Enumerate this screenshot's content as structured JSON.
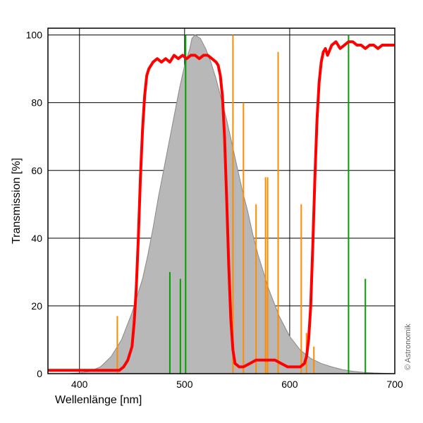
{
  "chart": {
    "type": "line",
    "xlabel": "Wellenlänge [nm]",
    "ylabel": "Transmission [%]",
    "label_fontsize": 16,
    "tick_fontsize": 14,
    "xlim": [
      370,
      700
    ],
    "ylim": [
      0,
      102
    ],
    "xtick_start": 400,
    "xtick_step": 100,
    "ytick_start": 0,
    "ytick_step": 20,
    "ytick_end": 100,
    "background_color": "#ffffff",
    "grid_color": "#000000",
    "grid_width": 1,
    "plot_area_fill": "#ffffff",
    "watermark_text": "Astronomik",
    "watermark_color": "#000000",
    "watermark_opacity": 0.05,
    "copyright": "© Astronomik",
    "eye_curve": {
      "fill": "#b8b8b8",
      "stroke": "#888888",
      "stroke_width": 1,
      "points": [
        [
          380,
          0
        ],
        [
          390,
          0
        ],
        [
          400,
          0.2
        ],
        [
          410,
          0.7
        ],
        [
          420,
          2
        ],
        [
          430,
          5
        ],
        [
          440,
          10
        ],
        [
          450,
          18
        ],
        [
          460,
          28
        ],
        [
          465,
          35
        ],
        [
          470,
          43
        ],
        [
          475,
          52
        ],
        [
          480,
          60
        ],
        [
          485,
          68
        ],
        [
          490,
          76
        ],
        [
          495,
          84
        ],
        [
          500,
          91
        ],
        [
          505,
          96
        ],
        [
          507,
          99
        ],
        [
          510,
          100
        ],
        [
          515,
          99
        ],
        [
          520,
          96
        ],
        [
          525,
          92
        ],
        [
          530,
          87
        ],
        [
          535,
          81
        ],
        [
          540,
          75
        ],
        [
          545,
          68
        ],
        [
          550,
          61
        ],
        [
          555,
          54
        ],
        [
          560,
          48
        ],
        [
          565,
          41
        ],
        [
          570,
          35
        ],
        [
          575,
          30
        ],
        [
          580,
          25
        ],
        [
          585,
          21
        ],
        [
          590,
          17
        ],
        [
          595,
          14
        ],
        [
          600,
          11
        ],
        [
          610,
          7
        ],
        [
          620,
          4.5
        ],
        [
          630,
          3
        ],
        [
          640,
          2
        ],
        [
          650,
          1.2
        ],
        [
          660,
          0.7
        ],
        [
          670,
          0.4
        ],
        [
          680,
          0.2
        ],
        [
          690,
          0.1
        ],
        [
          700,
          0
        ]
      ]
    },
    "green_lines": {
      "color": "#00a000",
      "width": 2,
      "lines": [
        {
          "x": 486,
          "h": 30
        },
        {
          "x": 496,
          "h": 28
        },
        {
          "x": 501,
          "h": 100
        },
        {
          "x": 656,
          "h": 100
        },
        {
          "x": 672,
          "h": 28
        }
      ]
    },
    "orange_lines": {
      "color": "#ff8c00",
      "width": 2,
      "lines": [
        {
          "x": 436,
          "h": 17
        },
        {
          "x": 546,
          "h": 100
        },
        {
          "x": 556,
          "h": 80
        },
        {
          "x": 568,
          "h": 50
        },
        {
          "x": 577,
          "h": 58
        },
        {
          "x": 579,
          "h": 58
        },
        {
          "x": 589,
          "h": 95
        },
        {
          "x": 611,
          "h": 50
        },
        {
          "x": 616,
          "h": 12
        },
        {
          "x": 623,
          "h": 8
        }
      ]
    },
    "red_curve": {
      "color": "#ff0000",
      "width": 4,
      "points": [
        [
          370,
          1
        ],
        [
          380,
          1
        ],
        [
          390,
          1
        ],
        [
          400,
          1
        ],
        [
          410,
          1
        ],
        [
          420,
          1
        ],
        [
          430,
          1
        ],
        [
          438,
          1
        ],
        [
          442,
          2
        ],
        [
          446,
          4
        ],
        [
          450,
          8
        ],
        [
          452,
          15
        ],
        [
          454,
          25
        ],
        [
          456,
          40
        ],
        [
          458,
          58
        ],
        [
          460,
          72
        ],
        [
          462,
          82
        ],
        [
          464,
          88
        ],
        [
          466,
          90
        ],
        [
          470,
          92
        ],
        [
          474,
          93
        ],
        [
          478,
          92
        ],
        [
          482,
          93
        ],
        [
          486,
          92
        ],
        [
          490,
          94
        ],
        [
          494,
          93
        ],
        [
          498,
          94
        ],
        [
          502,
          93
        ],
        [
          506,
          94
        ],
        [
          510,
          94
        ],
        [
          514,
          93
        ],
        [
          518,
          94
        ],
        [
          522,
          94
        ],
        [
          526,
          93
        ],
        [
          530,
          92
        ],
        [
          532,
          91
        ],
        [
          534,
          88
        ],
        [
          536,
          82
        ],
        [
          538,
          70
        ],
        [
          540,
          52
        ],
        [
          542,
          32
        ],
        [
          544,
          16
        ],
        [
          546,
          7
        ],
        [
          548,
          3
        ],
        [
          552,
          2
        ],
        [
          556,
          2
        ],
        [
          562,
          3
        ],
        [
          568,
          4
        ],
        [
          574,
          4
        ],
        [
          580,
          4
        ],
        [
          586,
          4
        ],
        [
          592,
          3
        ],
        [
          598,
          2
        ],
        [
          604,
          2
        ],
        [
          610,
          2
        ],
        [
          614,
          3
        ],
        [
          616,
          5
        ],
        [
          618,
          10
        ],
        [
          620,
          20
        ],
        [
          622,
          38
        ],
        [
          624,
          58
        ],
        [
          626,
          75
        ],
        [
          628,
          86
        ],
        [
          630,
          92
        ],
        [
          632,
          95
        ],
        [
          634,
          96
        ],
        [
          636,
          94
        ],
        [
          640,
          97
        ],
        [
          644,
          98
        ],
        [
          648,
          96
        ],
        [
          652,
          97
        ],
        [
          656,
          98
        ],
        [
          660,
          98
        ],
        [
          664,
          97
        ],
        [
          668,
          97
        ],
        [
          672,
          96
        ],
        [
          676,
          97
        ],
        [
          680,
          97
        ],
        [
          684,
          96
        ],
        [
          688,
          97
        ],
        [
          692,
          97
        ],
        [
          696,
          97
        ],
        [
          700,
          97
        ]
      ]
    }
  }
}
